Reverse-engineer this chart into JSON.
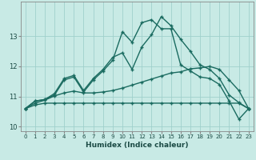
{
  "xlabel": "Humidex (Indice chaleur)",
  "background_color": "#c8eae5",
  "line_color": "#1a6b60",
  "grid_color": "#a0d0cc",
  "x": [
    0,
    1,
    2,
    3,
    4,
    5,
    6,
    7,
    8,
    9,
    10,
    11,
    12,
    13,
    14,
    15,
    16,
    17,
    18,
    19,
    20,
    21,
    22,
    23
  ],
  "lines": [
    [
      10.6,
      10.85,
      10.9,
      11.05,
      11.55,
      11.65,
      11.15,
      11.55,
      11.85,
      12.2,
      13.15,
      12.8,
      13.45,
      13.55,
      13.25,
      13.25,
      12.05,
      11.85,
      11.65,
      11.6,
      11.4,
      10.85,
      10.25,
      10.6
    ],
    [
      10.6,
      10.85,
      10.9,
      11.1,
      11.6,
      11.7,
      11.2,
      11.6,
      11.9,
      12.3,
      12.45,
      11.9,
      12.65,
      13.05,
      13.65,
      13.35,
      12.9,
      12.5,
      12.05,
      11.9,
      11.6,
      11.05,
      10.8,
      10.6
    ],
    [
      10.6,
      10.78,
      10.88,
      11.02,
      11.12,
      11.18,
      11.12,
      11.12,
      11.15,
      11.2,
      11.28,
      11.38,
      11.48,
      11.58,
      11.68,
      11.78,
      11.82,
      11.92,
      11.95,
      12.0,
      11.9,
      11.55,
      11.2,
      10.6
    ],
    [
      10.6,
      10.72,
      10.78,
      10.78,
      10.78,
      10.78,
      10.78,
      10.78,
      10.78,
      10.78,
      10.78,
      10.78,
      10.78,
      10.78,
      10.78,
      10.78,
      10.78,
      10.78,
      10.78,
      10.78,
      10.78,
      10.78,
      10.78,
      10.6
    ]
  ],
  "ylim": [
    9.85,
    14.15
  ],
  "yticks": [
    10,
    11,
    12,
    13
  ],
  "xticks": [
    0,
    1,
    2,
    3,
    4,
    5,
    6,
    7,
    8,
    9,
    10,
    11,
    12,
    13,
    14,
    15,
    16,
    17,
    18,
    19,
    20,
    21,
    22,
    23
  ],
  "marker": "+",
  "markersize": 3.5,
  "linewidth": 1.0
}
